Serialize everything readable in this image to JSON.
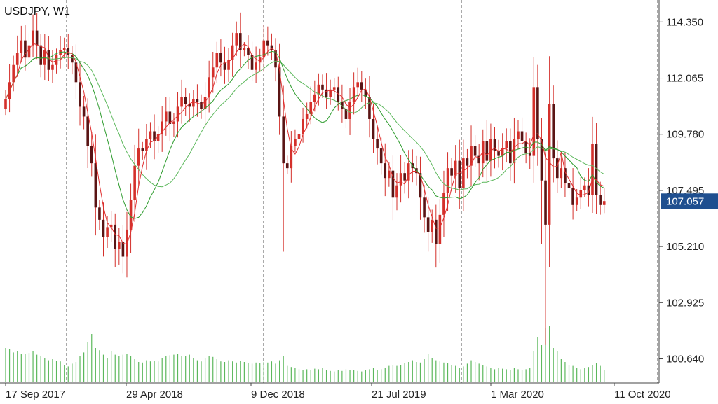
{
  "chart_data": {
    "type": "candlestick",
    "title": "USDJPY, W1",
    "symbol": "USDJPY",
    "timeframe": "W1",
    "current_price": "107.057",
    "ylim": [
      99.8,
      115.1
    ],
    "y_ticks": [
      "114.350",
      "112.065",
      "109.780",
      "107.495",
      "105.210",
      "102.925",
      "100.640"
    ],
    "x_ticks": [
      "17 Sep 2017",
      "29 Apr 2018",
      "9 Dec 2018",
      "21 Jul 2019",
      "1 Mar 2020",
      "11 Oct 2020"
    ],
    "grid": false,
    "bull_color": "#d4302b",
    "bear_color": "#5a1414",
    "ma_fast_color": "#e03030",
    "ma_mid_color": "#5cb85c",
    "ma_slow_color": "#2e9c2e",
    "volume_color": "#5cb85c",
    "price_label_color": "#1f4f8f",
    "closes": [
      111.2,
      111.9,
      112.6,
      113.1,
      113.6,
      112.9,
      113.4,
      114.0,
      113.4,
      112.6,
      113.2,
      112.4,
      112.6,
      113.0,
      113.2,
      113.3,
      113.0,
      112.7,
      111.9,
      110.9,
      110.5,
      109.3,
      108.6,
      106.8,
      106.3,
      105.6,
      106.0,
      106.1,
      105.1,
      105.4,
      104.8,
      105.9,
      107.1,
      108.5,
      109.2,
      109.1,
      109.6,
      109.9,
      109.5,
      109.8,
      110.3,
      110.7,
      110.2,
      110.3,
      110.9,
      111.3,
      111.0,
      110.9,
      111.2,
      111.1,
      110.8,
      111.3,
      112.1,
      112.5,
      113.1,
      112.7,
      112.4,
      112.8,
      113.4,
      113.9,
      113.2,
      113.3,
      113.0,
      112.4,
      112.7,
      112.9,
      113.6,
      113.4,
      113.2,
      112.5,
      110.5,
      108.6,
      108.4,
      109.3,
      109.6,
      109.8,
      110.4,
      110.6,
      111.1,
      111.4,
      111.8,
      111.6,
      111.3,
      111.6,
      111.7,
      111.1,
      110.8,
      110.4,
      111.1,
      111.7,
      111.9,
      111.6,
      111.3,
      110.4,
      109.6,
      109.2,
      108.6,
      108.0,
      108.3,
      107.2,
      107.7,
      108.2,
      107.9,
      108.6,
      108.4,
      108.2,
      107.2,
      106.4,
      105.8,
      106.3,
      105.3,
      106.5,
      107.4,
      108.4,
      108.1,
      108.7,
      107.6,
      108.8,
      108.5,
      109.3,
      108.9,
      108.6,
      109.5,
      108.7,
      109.6,
      109.1,
      108.9,
      109.2,
      109.5,
      108.6,
      109.6,
      109.9,
      109.5,
      109.0,
      108.9,
      111.7,
      109.6,
      107.9,
      106.1,
      111.0,
      108.8,
      108.0,
      108.4,
      107.8,
      107.6,
      106.9,
      107.2,
      107.5,
      107.7,
      107.3,
      109.4,
      107.3,
      106.9,
      107.06
    ],
    "volumes": [
      0.6,
      0.58,
      0.52,
      0.55,
      0.5,
      0.49,
      0.51,
      0.55,
      0.48,
      0.45,
      0.42,
      0.38,
      0.4,
      0.37,
      0.36,
      0.3,
      0.27,
      0.32,
      0.35,
      0.45,
      0.52,
      0.7,
      0.85,
      0.6,
      0.56,
      0.48,
      0.42,
      0.55,
      0.48,
      0.45,
      0.48,
      0.5,
      0.46,
      0.4,
      0.35,
      0.34,
      0.38,
      0.36,
      0.37,
      0.36,
      0.42,
      0.45,
      0.47,
      0.48,
      0.5,
      0.45,
      0.46,
      0.48,
      0.42,
      0.38,
      0.36,
      0.42,
      0.45,
      0.44,
      0.4,
      0.36,
      0.35,
      0.38,
      0.36,
      0.34,
      0.37,
      0.35,
      0.33,
      0.32,
      0.34,
      0.33,
      0.35,
      0.34,
      0.36,
      0.32,
      0.38,
      0.45,
      0.28,
      0.26,
      0.24,
      0.22,
      0.2,
      0.22,
      0.21,
      0.23,
      0.22,
      0.24,
      0.2,
      0.19,
      0.18,
      0.2,
      0.19,
      0.22,
      0.2,
      0.21,
      0.19,
      0.18,
      0.2,
      0.22,
      0.24,
      0.2,
      0.22,
      0.24,
      0.28,
      0.3,
      0.28,
      0.3,
      0.33,
      0.35,
      0.38,
      0.35,
      0.34,
      0.4,
      0.5,
      0.42,
      0.38,
      0.36,
      0.34,
      0.33,
      0.3,
      0.28,
      0.25,
      0.27,
      0.32,
      0.38,
      0.35,
      0.32,
      0.3,
      0.27,
      0.25,
      0.22,
      0.24,
      0.23,
      0.22,
      0.2,
      0.24,
      0.22,
      0.21,
      0.22,
      0.25,
      0.55,
      0.8,
      0.65,
      0.95,
      1.0,
      0.6,
      0.55,
      0.4,
      0.35,
      0.3,
      0.28,
      0.25,
      0.22,
      0.24,
      0.26,
      0.3,
      0.33,
      0.28,
      0.2
    ]
  }
}
